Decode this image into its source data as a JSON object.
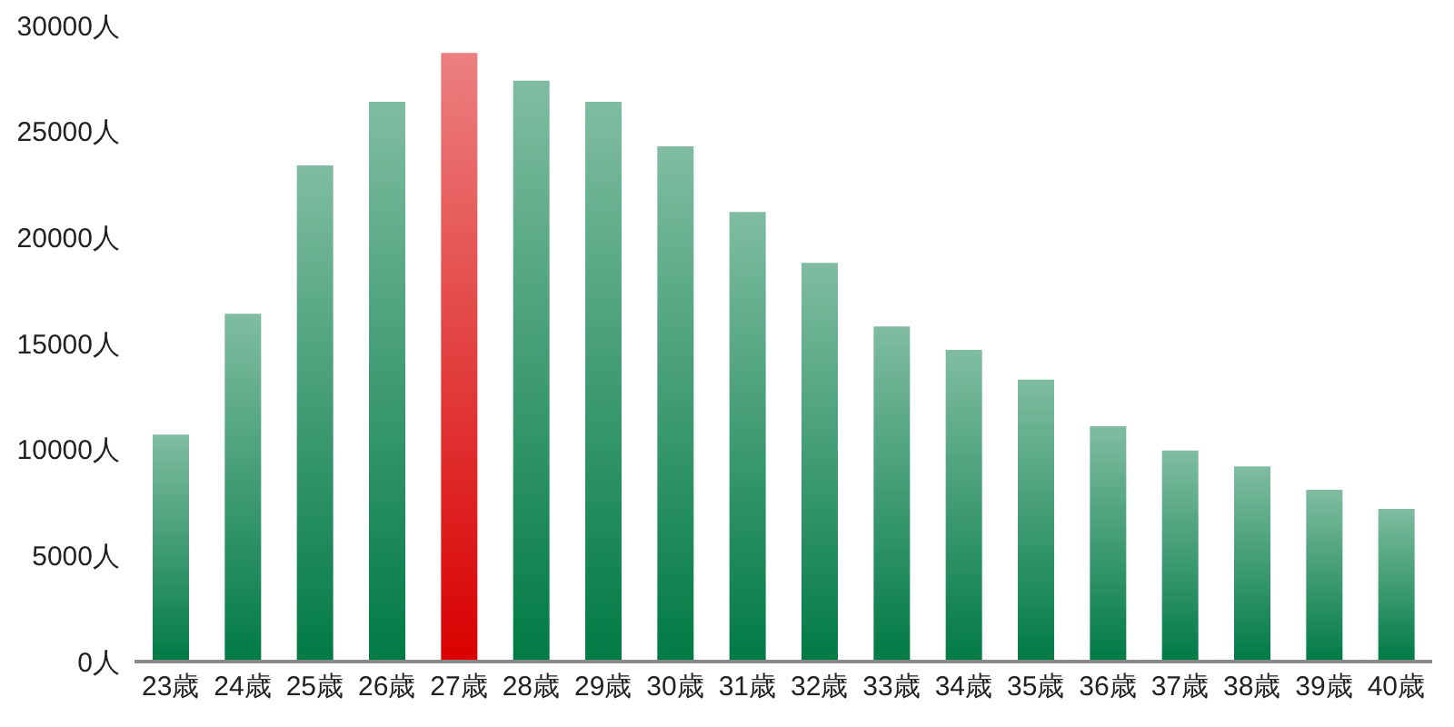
{
  "chart_data": {
    "type": "bar",
    "categories": [
      "23歳",
      "24歳",
      "25歳",
      "26歳",
      "27歳",
      "28歳",
      "29歳",
      "30歳",
      "31歳",
      "32歳",
      "33歳",
      "34歳",
      "35歳",
      "36歳",
      "37歳",
      "38歳",
      "39歳",
      "40歳"
    ],
    "values": [
      10700,
      16400,
      23400,
      26400,
      28700,
      27400,
      26400,
      24300,
      21200,
      18800,
      15800,
      14700,
      13300,
      11100,
      9950,
      9200,
      8100,
      7200
    ],
    "colors": [
      "#007a45",
      "#007a45",
      "#007a45",
      "#007a45",
      "#d90000",
      "#007a45",
      "#007a45",
      "#007a45",
      "#007a45",
      "#007a45",
      "#007a45",
      "#007a45",
      "#007a45",
      "#007a45",
      "#007a45",
      "#007a45",
      "#007a45",
      "#007a45"
    ],
    "ylim": [
      0,
      30000
    ],
    "yticks": [
      {
        "value": 0,
        "label": "0人"
      },
      {
        "value": 5000,
        "label": "5000人"
      },
      {
        "value": 10000,
        "label": "10000人"
      },
      {
        "value": 15000,
        "label": "15000人"
      },
      {
        "value": 20000,
        "label": "20000人"
      },
      {
        "value": 25000,
        "label": "25000人"
      },
      {
        "value": 30000,
        "label": "30000人"
      }
    ],
    "grid": false
  }
}
